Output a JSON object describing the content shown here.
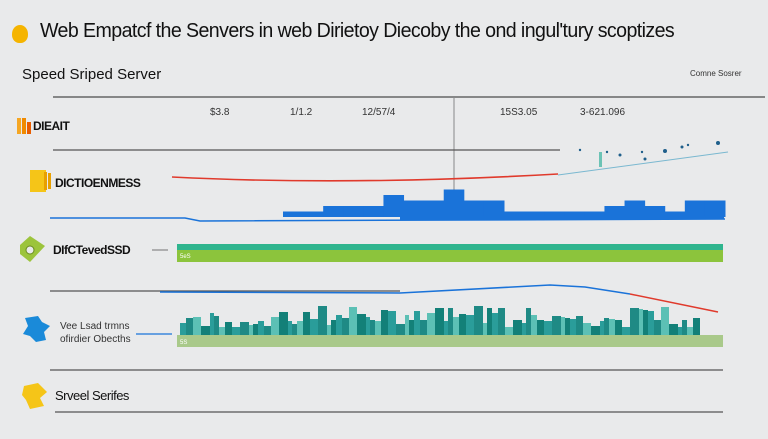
{
  "header": {
    "title": "Web Empatcf the Senvers in web Dirietoy Diecoby the ond ingul'tury scoptizes",
    "subtitle": "Speed Sriped Server",
    "corner_label": "Comne Sosrer"
  },
  "rows": [
    {
      "label": "DIEAIT",
      "icon": "orange-bars-icon"
    },
    {
      "label": "DICTIOENMESS",
      "icon": "yellow-folder-icon"
    },
    {
      "label": "DIfCTevedSSD",
      "icon": "green-gear-icon"
    },
    {
      "label_line1": "Vee Lsad trmns",
      "label_line2": "ofirdier Obecths",
      "icon": "blue-puzzle-icon"
    },
    {
      "label": "Srveel Serifes",
      "icon": "yellow-puzzle-icon"
    }
  ],
  "colors": {
    "red": "#e03a2c",
    "blue": "#1a73d9",
    "teal": "#2fb58e",
    "green": "#8cc43c",
    "skyline": "#2a9d9a",
    "pale_green": "#a9c98a"
  },
  "chart_data": {
    "type": "line",
    "title": "Web Empatcf the Senvers in web Dirietoy Diecoby the ond ingul'tury scoptizes",
    "x_tick_labels": [
      "$3.8",
      "1/1.2",
      "12/57/4",
      "15S3.05",
      "3-621.096"
    ],
    "bar_labels": [
      "5eS",
      "5S"
    ],
    "blue_bars": [
      1,
      1,
      2,
      2,
      2,
      4,
      3,
      3,
      5,
      3,
      3,
      1,
      1,
      1,
      1,
      1,
      2,
      3,
      2,
      1,
      3,
      3
    ],
    "grid": false
  }
}
